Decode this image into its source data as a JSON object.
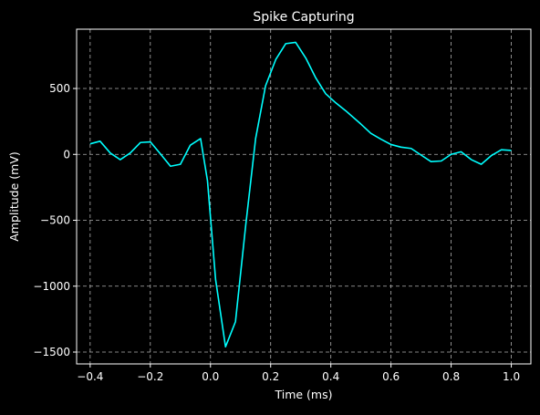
{
  "chart_data": {
    "type": "line",
    "title": "Spike Capturing",
    "xlabel": "Time (ms)",
    "ylabel": "Amplitude (mV)",
    "xlim": [
      -0.445,
      1.065
    ],
    "ylim": [
      -1590,
      950
    ],
    "xticks": [
      -0.4,
      -0.2,
      0.0,
      0.2,
      0.4,
      0.6,
      0.8,
      1.0
    ],
    "xtick_labels": [
      "−0.4",
      "−0.2",
      "0.0",
      "0.2",
      "0.4",
      "0.6",
      "0.8",
      "1.0"
    ],
    "yticks": [
      500,
      0,
      -500,
      -1000,
      -1500
    ],
    "ytick_labels": [
      "500",
      "0",
      "−500",
      "−1000",
      "−1500"
    ],
    "grid": true,
    "legend": "none",
    "colors": {
      "background": "#000000",
      "line": "#00ffff",
      "grid": "#b0b0b0",
      "text": "#ffffff"
    },
    "series": [
      {
        "x": [
          -0.4,
          -0.367,
          -0.333,
          -0.3,
          -0.267,
          -0.233,
          -0.2,
          -0.167,
          -0.133,
          -0.1,
          -0.067,
          -0.033,
          -0.01,
          0.017,
          0.05,
          0.083,
          0.117,
          0.15,
          0.183,
          0.217,
          0.25,
          0.283,
          0.317,
          0.35,
          0.383,
          0.417,
          0.45,
          0.5,
          0.533,
          0.567,
          0.6,
          0.633,
          0.667,
          0.7,
          0.733,
          0.767,
          0.8,
          0.833,
          0.867,
          0.9,
          0.933,
          0.967,
          1.0
        ],
        "values": [
          80,
          100,
          10,
          -40,
          10,
          90,
          95,
          5,
          -90,
          -75,
          70,
          120,
          -200,
          -950,
          -1460,
          -1270,
          -540,
          120,
          520,
          720,
          840,
          850,
          730,
          580,
          460,
          390,
          330,
          230,
          160,
          115,
          75,
          55,
          45,
          -5,
          -55,
          -50,
          0,
          20,
          -40,
          -75,
          -10,
          35,
          30
        ]
      }
    ]
  }
}
